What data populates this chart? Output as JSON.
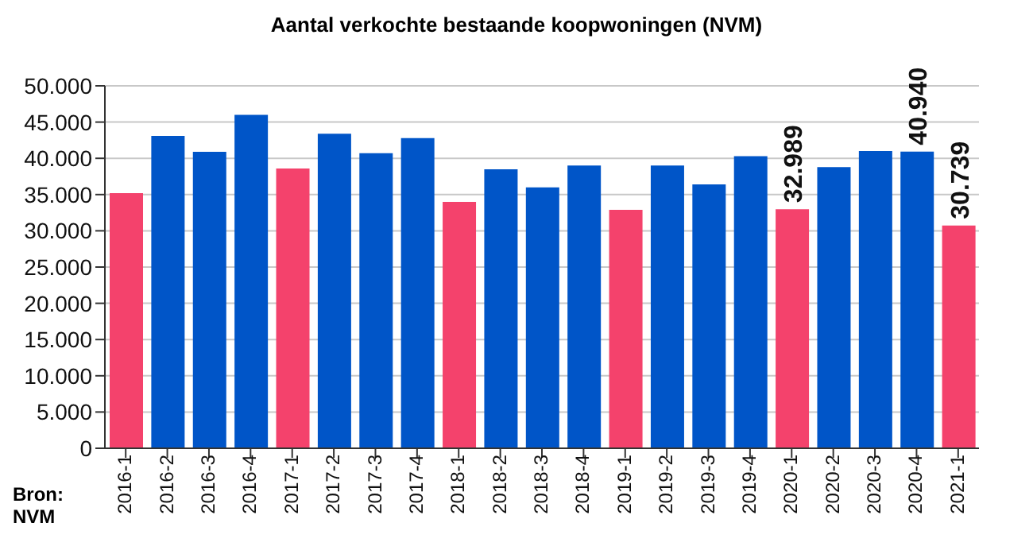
{
  "chart_data": {
    "type": "bar",
    "title": "Aantal verkochte bestaande koopwoningen (NVM)",
    "categories": [
      "2016-1",
      "2016-2",
      "2016-3",
      "2016-4",
      "2017-1",
      "2017-2",
      "2017-3",
      "2017-4",
      "2018-1",
      "2018-2",
      "2018-3",
      "2018-4",
      "2019-1",
      "2019-2",
      "2019-3",
      "2019-4",
      "2020-1",
      "2020-2",
      "2020-3",
      "2020-4",
      "2021-1"
    ],
    "values": [
      35200,
      43100,
      40900,
      46000,
      38600,
      43400,
      40700,
      42800,
      34000,
      38500,
      36000,
      39000,
      32900,
      39000,
      36400,
      40300,
      32989,
      38800,
      41000,
      40940,
      30739
    ],
    "colors": [
      "#f4426c",
      "#0055c8",
      "#0055c8",
      "#0055c8",
      "#f4426c",
      "#0055c8",
      "#0055c8",
      "#0055c8",
      "#f4426c",
      "#0055c8",
      "#0055c8",
      "#0055c8",
      "#f4426c",
      "#0055c8",
      "#0055c8",
      "#0055c8",
      "#f4426c",
      "#0055c8",
      "#0055c8",
      "#0055c8",
      "#f4426c"
    ],
    "value_labels": [
      null,
      null,
      null,
      null,
      null,
      null,
      null,
      null,
      null,
      null,
      null,
      null,
      null,
      null,
      null,
      null,
      "32.989",
      null,
      null,
      "40.940",
      "30.739"
    ],
    "ylim": [
      0,
      50000
    ],
    "yticks": [
      {
        "value": 0,
        "label": "0"
      },
      {
        "value": 5000,
        "label": "5.000"
      },
      {
        "value": 10000,
        "label": "10.000"
      },
      {
        "value": 15000,
        "label": "15.000"
      },
      {
        "value": 20000,
        "label": "20.000"
      },
      {
        "value": 25000,
        "label": "25.000"
      },
      {
        "value": 30000,
        "label": "30.000"
      },
      {
        "value": 35000,
        "label": "35.000"
      },
      {
        "value": 40000,
        "label": "40.000"
      },
      {
        "value": 45000,
        "label": "45.000"
      },
      {
        "value": 50000,
        "label": "50.000"
      }
    ],
    "grid": "y",
    "annotations": [
      "Bron:\nNVM"
    ]
  }
}
